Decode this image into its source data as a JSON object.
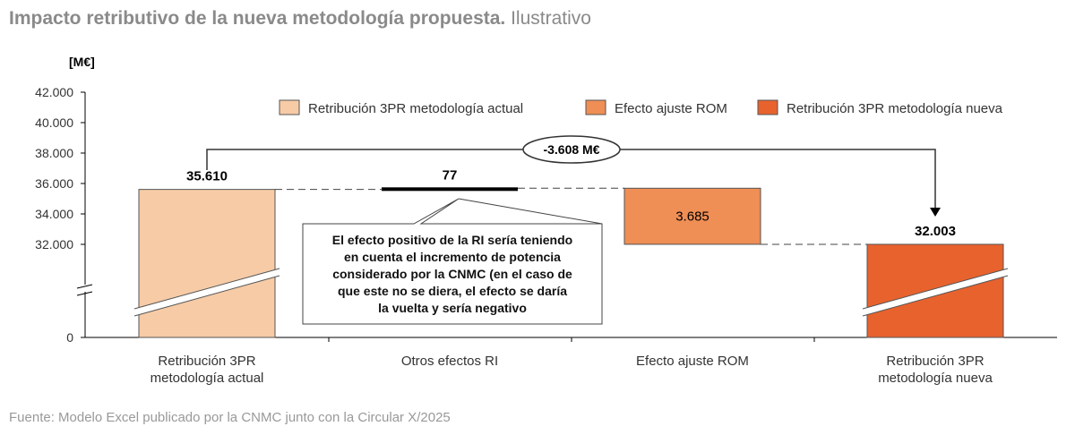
{
  "chart_data": {
    "type": "waterfall",
    "title": "Impacto retributivo de la nueva metodología propuesta.",
    "subtitle": "Ilustrativo",
    "ylabel": "[M€]",
    "ylim": [
      0,
      42000
    ],
    "y_break": true,
    "yticks": [
      "0",
      "32.000",
      "34.000",
      "36.000",
      "38.000",
      "40.000",
      "42.000"
    ],
    "ytick_values": [
      0,
      32000,
      34000,
      36000,
      38000,
      40000,
      42000
    ],
    "categories": [
      "Retribución 3PR\nmetodología actual",
      "Otros efectos RI",
      "Efecto ajuste ROM",
      "Retribución 3PR\nmetodología nueva"
    ],
    "category_lines": [
      [
        "Retribución 3PR",
        "metodología actual"
      ],
      [
        "Otros efectos RI"
      ],
      [
        "Efecto ajuste ROM"
      ],
      [
        "Retribución 3PR",
        "metodología nueva"
      ]
    ],
    "bars": [
      {
        "base": 0,
        "top": 35610,
        "label": "35.610",
        "series": 0
      },
      {
        "base": 35610,
        "top": 35687,
        "label": "77",
        "series": -1
      },
      {
        "base": 32003,
        "top": 35688,
        "label": "3.685",
        "series": 1
      },
      {
        "base": 0,
        "top": 32003,
        "label": "32.003",
        "series": 2
      }
    ],
    "legend": [
      {
        "name": "Retribución 3PR metodología actual",
        "color": "#F6CBA6"
      },
      {
        "name": "Efecto ajuste ROM",
        "color": "#EF8E55"
      },
      {
        "name": "Retribución 3PR metodología nueva",
        "color": "#E8622E"
      }
    ],
    "legend_position": "top-right",
    "difference_label": "-3.608 M€",
    "annotation": [
      "El efecto positivo de la RI sería teniendo",
      "en cuenta el incremento de potencia",
      "considerado por la CNMC (en el caso de",
      "que este no se diera, el efecto se daría",
      "la vuelta y sería negativo"
    ],
    "source": "Fuente: Modelo Excel publicado por la CNMC junto con la Circular X/2025"
  }
}
